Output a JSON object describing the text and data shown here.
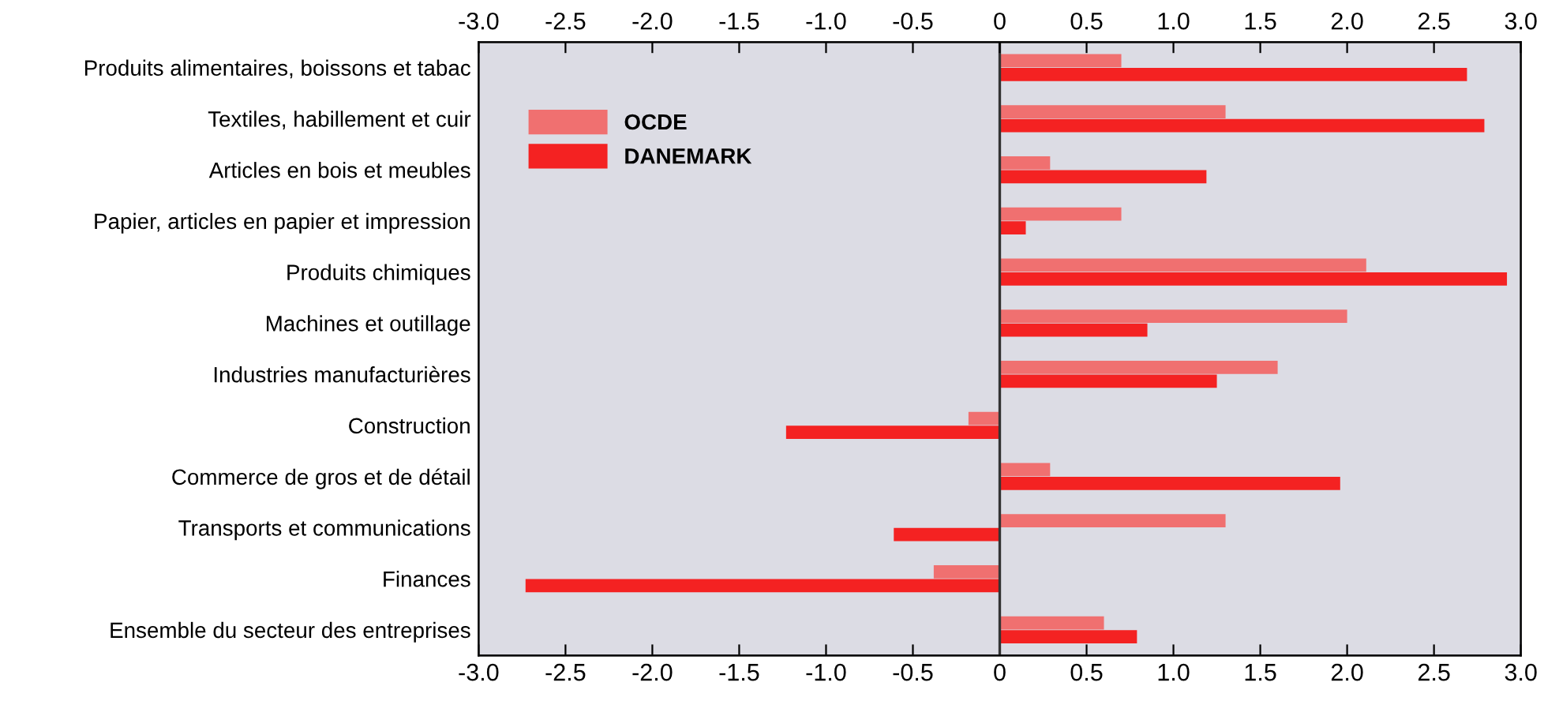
{
  "chart_data": {
    "type": "bar",
    "orientation": "horizontal",
    "categories": [
      "Produits alimentaires, boissons et tabac",
      "Textiles, habillement et cuir",
      "Articles en bois et meubles",
      "Papier, articles en papier et impression",
      "Produits chimiques",
      "Machines et outillage",
      "Industries manufacturières",
      "Construction",
      "Commerce de gros et de détail",
      "Transports et communications",
      "Finances",
      "Ensemble du secteur des entreprises"
    ],
    "series": [
      {
        "name": "OCDE",
        "color": "#f07070",
        "values": [
          0.7,
          1.3,
          0.29,
          0.7,
          2.11,
          2.0,
          1.6,
          -0.18,
          0.29,
          1.3,
          -0.38,
          0.6
        ]
      },
      {
        "name": "DANEMARK",
        "color": "#f42222",
        "values": [
          2.69,
          2.79,
          1.19,
          0.15,
          2.92,
          0.85,
          1.25,
          -1.23,
          1.96,
          -0.61,
          -2.73,
          0.79
        ]
      }
    ],
    "xlim": [
      -3,
      3
    ],
    "xticks": [
      {
        "value": -3,
        "label": "-3.0"
      },
      -2.5,
      {
        "value": -2,
        "label": "-2.0"
      },
      -1.5,
      {
        "value": -1,
        "label": "-1.0"
      },
      -0.5,
      0,
      0.5,
      {
        "value": 1,
        "label": "1.0"
      },
      1.5,
      {
        "value": 2,
        "label": "2.0"
      },
      2.5,
      {
        "value": 3,
        "label": "3.0"
      }
    ],
    "x2lim": [
      -3,
      3
    ],
    "x2ticks": [
      {
        "value": -3,
        "label": "-3.0"
      },
      -2.5,
      {
        "value": -2,
        "label": "-2.0"
      },
      -1.5,
      {
        "value": -1,
        "label": "-1.0"
      },
      -0.5,
      0,
      0.5,
      {
        "value": 1,
        "label": "1.0"
      },
      1.5,
      {
        "value": 2,
        "label": "2.0"
      },
      2.5,
      {
        "value": 3,
        "label": "3.0"
      }
    ],
    "ref_lines": [
      {
        "axis": "x",
        "value": 0,
        "color": "#333333"
      }
    ],
    "legend": "top left"
  }
}
